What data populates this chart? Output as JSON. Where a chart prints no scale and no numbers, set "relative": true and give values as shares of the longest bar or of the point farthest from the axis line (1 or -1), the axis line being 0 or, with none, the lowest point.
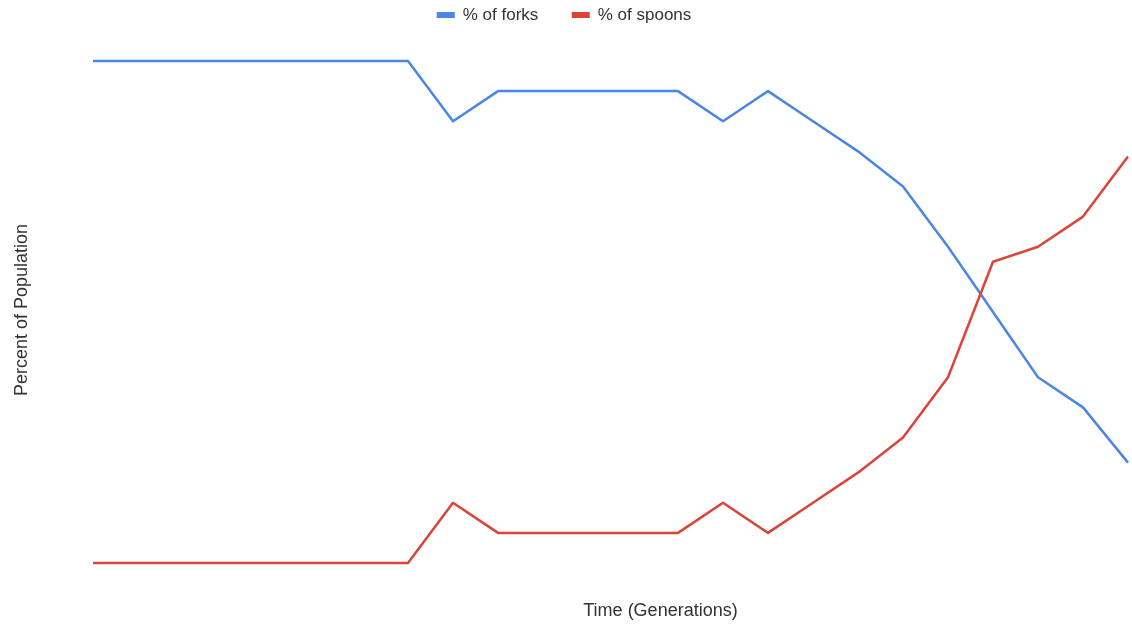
{
  "chart_data": {
    "type": "line",
    "relative": true,
    "xlabel": "Time (Generations)",
    "ylabel": "Percent of Population",
    "legend": "top",
    "grid": false,
    "marker": "none",
    "line_style": "solid",
    "categories": [
      null,
      null,
      null,
      null,
      null,
      null,
      null,
      null,
      null,
      null,
      null,
      null,
      null,
      null,
      null,
      null,
      null,
      null,
      null,
      null,
      null,
      null,
      null,
      null
    ],
    "series": [
      {
        "name": "% of forks",
        "color": "#4a86e8",
        "values": [
          1,
          1,
          1,
          1,
          1,
          1,
          1,
          1,
          0.88,
          0.94,
          0.94,
          0.94,
          0.94,
          0.94,
          0.88,
          0.94,
          0.88,
          0.82,
          0.75,
          0.63,
          0.5,
          0.37,
          0.31,
          0.2
        ]
      },
      {
        "name": "% of spoons",
        "color": "#db4437",
        "values": [
          0,
          0,
          0,
          0,
          0,
          0,
          0,
          0,
          0.12,
          0.06,
          0.06,
          0.06,
          0.06,
          0.06,
          0.12,
          0.06,
          0.12,
          0.18,
          0.25,
          0.37,
          0.6,
          0.63,
          0.69,
          0.81
        ]
      }
    ]
  }
}
